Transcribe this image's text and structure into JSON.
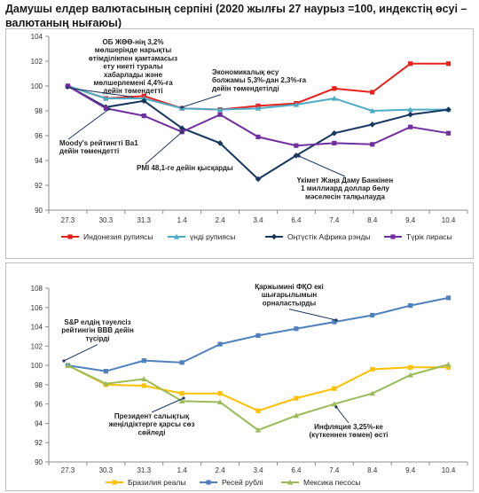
{
  "title": "Дамушы елдер валютасының серпіні (2020 жылғы 27 наурыз =100, индекстің өсуі – валютаның нығаюы)",
  "chart_data": [
    {
      "type": "line",
      "categories": [
        "27.3",
        "30.3",
        "31.3",
        "1.4",
        "2.4",
        "3.4",
        "6.4",
        "7.4",
        "8.4",
        "9.4",
        "10.4"
      ],
      "ylim": [
        90,
        104
      ],
      "yticks": [
        90,
        92,
        94,
        96,
        98,
        100,
        102,
        104
      ],
      "grid": false,
      "legend": "bottom",
      "series": [
        {
          "name": "Индонезия рупиясы",
          "color": "#e8211d",
          "values": [
            100,
            99.0,
            99.2,
            98.2,
            98.1,
            98.4,
            98.6,
            99.8,
            99.5,
            101.8,
            101.8
          ]
        },
        {
          "name": "үнді рупиясы",
          "color": "#4bacc6",
          "values": [
            100,
            99.0,
            99.0,
            98.2,
            98.1,
            98.2,
            98.5,
            99.0,
            98.0,
            98.1,
            98.1
          ]
        },
        {
          "name": "Оңтүстік Африка рэнды",
          "color": "#17375e",
          "values": [
            100,
            98.3,
            98.8,
            96.6,
            95.4,
            92.5,
            94.4,
            96.2,
            96.9,
            97.7,
            98.1
          ]
        },
        {
          "name": "Түрік лирасы",
          "color": "#7030a0",
          "values": [
            100,
            98.2,
            97.6,
            96.3,
            97.7,
            95.9,
            95.2,
            95.4,
            95.3,
            96.7,
            96.2
          ]
        }
      ],
      "annotations": [
        "ОБ ЖӨӨ-нің 3,2% мөлшерінде нарықты өтімділікпен қамтамасыз ету ниеті туралы хабарлады және мөлшерлемені 4,4%-ға дейін төмендетті",
        "Экономикалық өсу болжамы 5,3%-дан 2,3%-ға дейін төмендетілді",
        "Moody's рейтингті Ba1 дейін төмендетті",
        "PMI 48,1-ге дейін қысқарды",
        "Үкімет Жаңа Даму Банкінен 1 миллиард доллар бөлу мәселесін талқылауда"
      ]
    },
    {
      "type": "line",
      "categories": [
        "27.3",
        "30.3",
        "31.3",
        "1.4",
        "2.4",
        "3.4",
        "6.4",
        "7.4",
        "8.4",
        "9.4",
        "10.4"
      ],
      "ylim": [
        90,
        108
      ],
      "yticks": [
        90,
        92,
        94,
        96,
        98,
        100,
        102,
        104,
        106,
        108
      ],
      "grid": false,
      "legend": "bottom",
      "series": [
        {
          "name": "Бразилия реалы",
          "color": "#ffc000",
          "values": [
            100,
            98.0,
            97.9,
            97.1,
            97.1,
            95.3,
            96.6,
            97.6,
            99.6,
            99.8,
            99.8
          ]
        },
        {
          "name": "Ресей рублі",
          "color": "#4f81bd",
          "values": [
            100,
            99.4,
            100.5,
            100.3,
            102.2,
            103.1,
            103.8,
            104.5,
            105.2,
            106.2,
            107.0
          ]
        },
        {
          "name": "Мексика песосы",
          "color": "#9bbb59",
          "values": [
            100,
            98.1,
            98.6,
            96.3,
            96.2,
            93.3,
            94.8,
            96.0,
            97.1,
            99.0,
            100.1
          ]
        }
      ],
      "annotations": [
        "Қаржымині ФҚО екі шығарылымын орналастырды",
        "S&P елдің тәуелсіз рейтингін BBB дейін түсірді",
        "Президент салықтық жеңілдіктерге қарсы сөз сөйледі",
        "Инфляция 3,25%-ке (күткеннен төмен) өсті"
      ]
    }
  ]
}
